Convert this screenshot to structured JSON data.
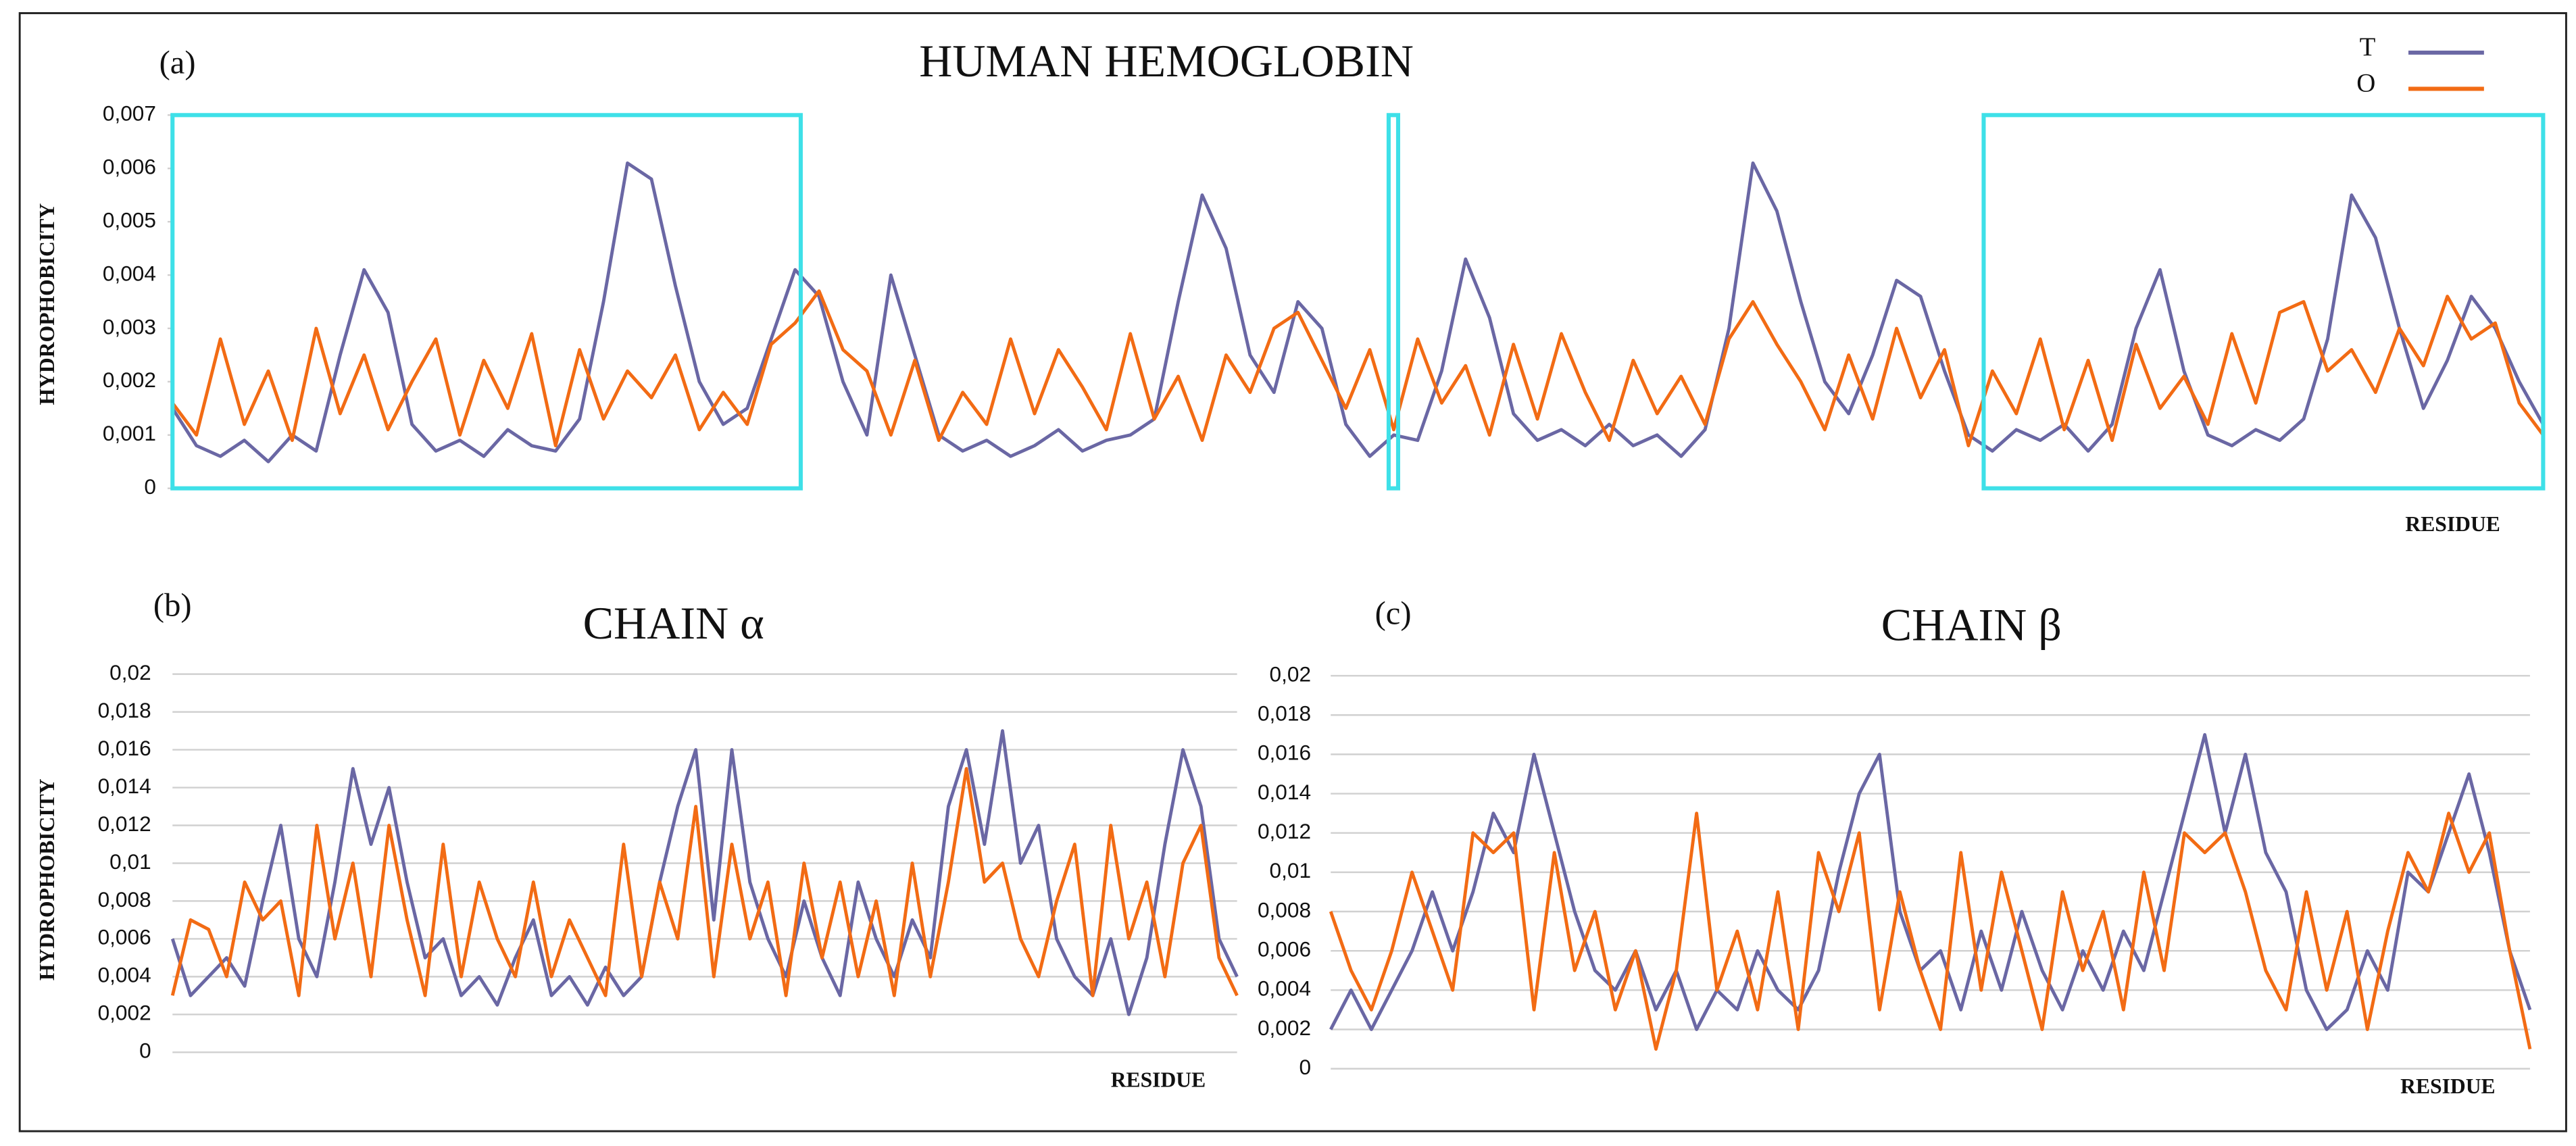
{
  "chart_data": [
    {
      "type": "line",
      "panel": "(a)",
      "title": "HUMAN HEMOGLOBIN",
      "y_label": "HYDROPHOBICITY",
      "x_label": "RESIDUE",
      "legend": "top-right",
      "grid": false,
      "ylim": [
        0,
        0.007
      ],
      "yticks": [
        0,
        {
          "value": 0.001,
          "label": "0,001"
        },
        {
          "value": 0.002,
          "label": "0,002"
        },
        {
          "value": 0.003,
          "label": "0,003"
        },
        {
          "value": 0.004,
          "label": "0,004"
        },
        {
          "value": 0.005,
          "label": "0,005"
        },
        {
          "value": 0.006,
          "label": "0,006"
        },
        {
          "value": 0.007,
          "label": "0,007"
        }
      ],
      "series": [
        {
          "name": "T",
          "color": "#6a67a4",
          "values": [
            0.0015,
            0.0008,
            0.0006,
            0.0009,
            0.0005,
            0.001,
            0.0007,
            0.0025,
            0.0041,
            0.0033,
            0.0012,
            0.0007,
            0.0009,
            0.0006,
            0.0011,
            0.0008,
            0.0007,
            0.0013,
            0.0035,
            0.0061,
            0.0058,
            0.0038,
            0.002,
            0.0012,
            0.0015,
            0.0028,
            0.0041,
            0.0036,
            0.002,
            0.001,
            0.004,
            0.0025,
            0.001,
            0.0007,
            0.0009,
            0.0006,
            0.0008,
            0.0011,
            0.0007,
            0.0009,
            0.001,
            0.0013,
            0.0035,
            0.0055,
            0.0045,
            0.0025,
            0.0018,
            0.0035,
            0.003,
            0.0012,
            0.0006,
            0.001,
            0.0009,
            0.0022,
            0.0043,
            0.0032,
            0.0014,
            0.0009,
            0.0011,
            0.0008,
            0.0012,
            0.0008,
            0.001,
            0.0006,
            0.0011,
            0.003,
            0.0061,
            0.0052,
            0.0035,
            0.002,
            0.0014,
            0.0025,
            0.0039,
            0.0036,
            0.0022,
            0.001,
            0.0007,
            0.0011,
            0.0009,
            0.0012,
            0.0007,
            0.0012,
            0.003,
            0.0041,
            0.0022,
            0.001,
            0.0008,
            0.0011,
            0.0009,
            0.0013,
            0.0028,
            0.0055,
            0.0047,
            0.003,
            0.0015,
            0.0024,
            0.0036,
            0.003,
            0.002,
            0.0012
          ]
        },
        {
          "name": "O",
          "color": "#f26b14",
          "values": [
            0.0016,
            0.001,
            0.0028,
            0.0012,
            0.0022,
            0.0009,
            0.003,
            0.0014,
            0.0025,
            0.0011,
            0.002,
            0.0028,
            0.001,
            0.0024,
            0.0015,
            0.0029,
            0.0008,
            0.0026,
            0.0013,
            0.0022,
            0.0017,
            0.0025,
            0.0011,
            0.0018,
            0.0012,
            0.0027,
            0.0031,
            0.0037,
            0.0026,
            0.0022,
            0.001,
            0.0024,
            0.0009,
            0.0018,
            0.0012,
            0.0028,
            0.0014,
            0.0026,
            0.0019,
            0.0011,
            0.0029,
            0.0013,
            0.0021,
            0.0009,
            0.0025,
            0.0018,
            0.003,
            0.0033,
            0.0024,
            0.0015,
            0.0026,
            0.0011,
            0.0028,
            0.0016,
            0.0023,
            0.001,
            0.0027,
            0.0013,
            0.0029,
            0.0018,
            0.0009,
            0.0024,
            0.0014,
            0.0021,
            0.0012,
            0.0028,
            0.0035,
            0.0027,
            0.002,
            0.0011,
            0.0025,
            0.0013,
            0.003,
            0.0017,
            0.0026,
            0.0008,
            0.0022,
            0.0014,
            0.0028,
            0.0011,
            0.0024,
            0.0009,
            0.0027,
            0.0015,
            0.0021,
            0.0012,
            0.0029,
            0.0016,
            0.0033,
            0.0035,
            0.0022,
            0.0026,
            0.0018,
            0.003,
            0.0023,
            0.0036,
            0.0028,
            0.0031,
            0.0016,
            0.001
          ]
        }
      ]
    },
    {
      "type": "line",
      "panel": "(b)",
      "title": "CHAIN α",
      "y_label": "HYDROPHOBICITY",
      "x_label": "RESIDUE",
      "grid": true,
      "ylim": [
        0,
        0.02
      ],
      "yticks": [
        0,
        {
          "value": 0.002,
          "label": "0,002"
        },
        {
          "value": 0.004,
          "label": "0,004"
        },
        {
          "value": 0.006,
          "label": "0,006"
        },
        {
          "value": 0.008,
          "label": "0,008"
        },
        {
          "value": 0.01,
          "label": "0,01"
        },
        {
          "value": 0.012,
          "label": "0,012"
        },
        {
          "value": 0.014,
          "label": "0,014"
        },
        {
          "value": 0.016,
          "label": "0,016"
        },
        {
          "value": 0.018,
          "label": "0,018"
        },
        {
          "value": 0.02,
          "label": "0,02"
        }
      ],
      "series": [
        {
          "color": "#6a67a4",
          "values": [
            0.006,
            0.003,
            0.004,
            0.005,
            0.0035,
            0.008,
            0.012,
            0.006,
            0.004,
            0.009,
            0.015,
            0.011,
            0.014,
            0.009,
            0.005,
            0.006,
            0.003,
            0.004,
            0.0025,
            0.005,
            0.007,
            0.003,
            0.004,
            0.0025,
            0.0045,
            0.003,
            0.004,
            0.009,
            0.013,
            0.016,
            0.007,
            0.016,
            0.009,
            0.006,
            0.004,
            0.008,
            0.005,
            0.003,
            0.009,
            0.006,
            0.004,
            0.007,
            0.005,
            0.013,
            0.016,
            0.011,
            0.017,
            0.01,
            0.012,
            0.006,
            0.004,
            0.003,
            0.006,
            0.002,
            0.005,
            0.011,
            0.016,
            0.013,
            0.006,
            0.004
          ]
        },
        {
          "color": "#f26b14",
          "values": [
            0.003,
            0.007,
            0.0065,
            0.004,
            0.009,
            0.007,
            0.008,
            0.003,
            0.012,
            0.006,
            0.01,
            0.004,
            0.012,
            0.007,
            0.003,
            0.011,
            0.004,
            0.009,
            0.006,
            0.004,
            0.009,
            0.004,
            0.007,
            0.005,
            0.003,
            0.011,
            0.004,
            0.009,
            0.006,
            0.013,
            0.004,
            0.011,
            0.006,
            0.009,
            0.003,
            0.01,
            0.005,
            0.009,
            0.004,
            0.008,
            0.003,
            0.01,
            0.004,
            0.009,
            0.015,
            0.009,
            0.01,
            0.006,
            0.004,
            0.008,
            0.011,
            0.003,
            0.012,
            0.006,
            0.009,
            0.004,
            0.01,
            0.012,
            0.005,
            0.003
          ]
        }
      ]
    },
    {
      "type": "line",
      "panel": "(c)",
      "title": "CHAIN β",
      "x_label": "RESIDUE",
      "grid": true,
      "ylim": [
        0,
        0.02
      ],
      "yticks": [
        0,
        {
          "value": 0.002,
          "label": "0,002"
        },
        {
          "value": 0.004,
          "label": "0,004"
        },
        {
          "value": 0.006,
          "label": "0,006"
        },
        {
          "value": 0.008,
          "label": "0,008"
        },
        {
          "value": 0.01,
          "label": "0,01"
        },
        {
          "value": 0.012,
          "label": "0,012"
        },
        {
          "value": 0.014,
          "label": "0,014"
        },
        {
          "value": 0.016,
          "label": "0,016"
        },
        {
          "value": 0.018,
          "label": "0,018"
        },
        {
          "value": 0.02,
          "label": "0,02"
        }
      ],
      "series": [
        {
          "color": "#6a67a4",
          "values": [
            0.002,
            0.004,
            0.002,
            0.004,
            0.006,
            0.009,
            0.006,
            0.009,
            0.013,
            0.011,
            0.016,
            0.012,
            0.008,
            0.005,
            0.004,
            0.006,
            0.003,
            0.005,
            0.002,
            0.004,
            0.003,
            0.006,
            0.004,
            0.003,
            0.005,
            0.01,
            0.014,
            0.016,
            0.008,
            0.005,
            0.006,
            0.003,
            0.007,
            0.004,
            0.008,
            0.005,
            0.003,
            0.006,
            0.004,
            0.007,
            0.005,
            0.009,
            0.013,
            0.017,
            0.012,
            0.016,
            0.011,
            0.009,
            0.004,
            0.002,
            0.003,
            0.006,
            0.004,
            0.01,
            0.009,
            0.012,
            0.015,
            0.011,
            0.006,
            0.003
          ]
        },
        {
          "color": "#f26b14",
          "values": [
            0.008,
            0.005,
            0.003,
            0.006,
            0.01,
            0.007,
            0.004,
            0.012,
            0.011,
            0.012,
            0.003,
            0.011,
            0.005,
            0.008,
            0.003,
            0.006,
            0.001,
            0.005,
            0.013,
            0.004,
            0.007,
            0.003,
            0.009,
            0.002,
            0.011,
            0.008,
            0.012,
            0.003,
            0.009,
            0.005,
            0.002,
            0.011,
            0.004,
            0.01,
            0.006,
            0.002,
            0.009,
            0.005,
            0.008,
            0.003,
            0.01,
            0.005,
            0.012,
            0.011,
            0.012,
            0.009,
            0.005,
            0.003,
            0.009,
            0.004,
            0.008,
            0.002,
            0.007,
            0.011,
            0.009,
            0.013,
            0.01,
            0.012,
            0.006,
            0.001
          ]
        }
      ]
    }
  ]
}
